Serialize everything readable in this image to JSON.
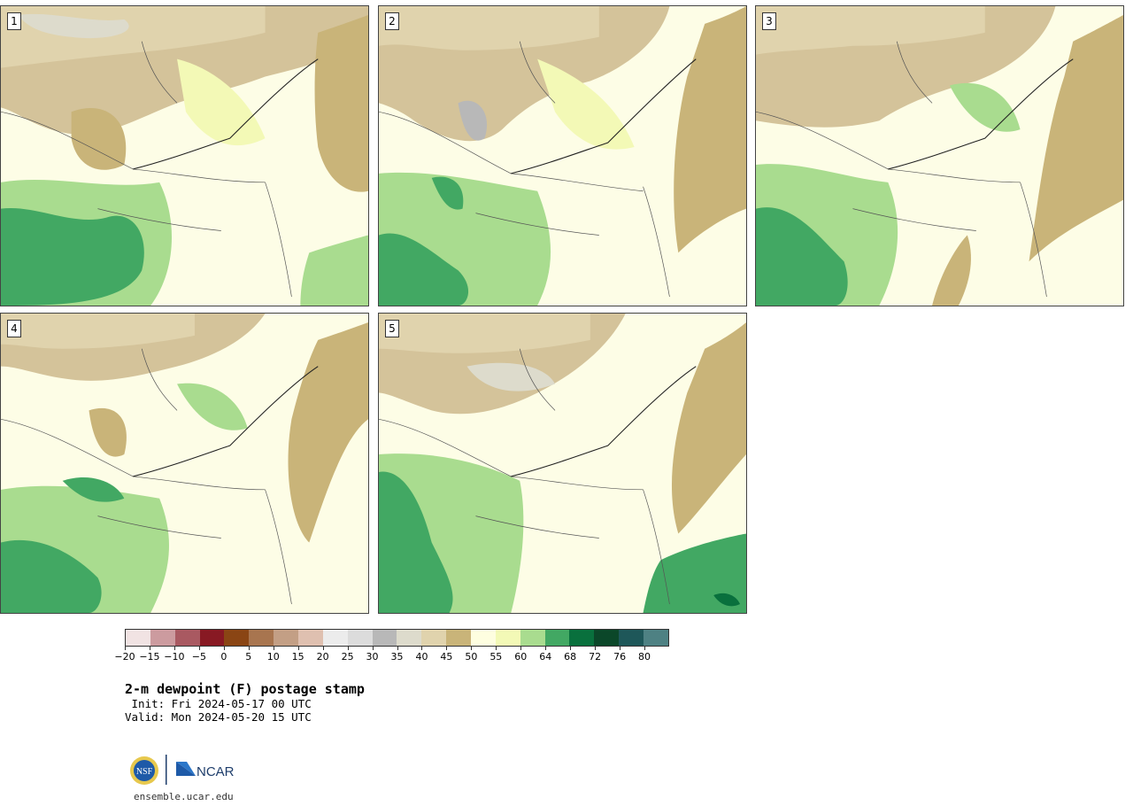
{
  "panels": [
    {
      "label": "1"
    },
    {
      "label": "2"
    },
    {
      "label": "3"
    },
    {
      "label": "4"
    },
    {
      "label": "5"
    }
  ],
  "colorbar": {
    "colors": [
      "#f1e3e3",
      "#cc9b9f",
      "#a95961",
      "#881923",
      "#8a4514",
      "#a8754f",
      "#c39f85",
      "#dfc0b0",
      "#ececec",
      "#dcdcdc",
      "#b8b8b8",
      "#dddbcc",
      "#e0d3ad",
      "#c9b479",
      "#fefee0",
      "#f3f9b6",
      "#a9dc8f",
      "#42a863",
      "#09703d",
      "#0b4729",
      "#1e5759",
      "#4e8183"
    ],
    "tick_labels": [
      "−20",
      "−15",
      "−10",
      "−5",
      "0",
      "5",
      "10",
      "15",
      "20",
      "25",
      "30",
      "35",
      "40",
      "45",
      "50",
      "55",
      "60",
      "64",
      "68",
      "72",
      "76",
      "80"
    ]
  },
  "title": "2-m dewpoint (F) postage stamp",
  "init_line": " Init: Fri 2024-05-17 00 UTC",
  "valid_line": "Valid: Mon 2024-05-20 15 UTC",
  "logos": {
    "nsf": "NSF",
    "ncar": "NCAR"
  },
  "footer_url": "ensemble.ucar.edu"
}
